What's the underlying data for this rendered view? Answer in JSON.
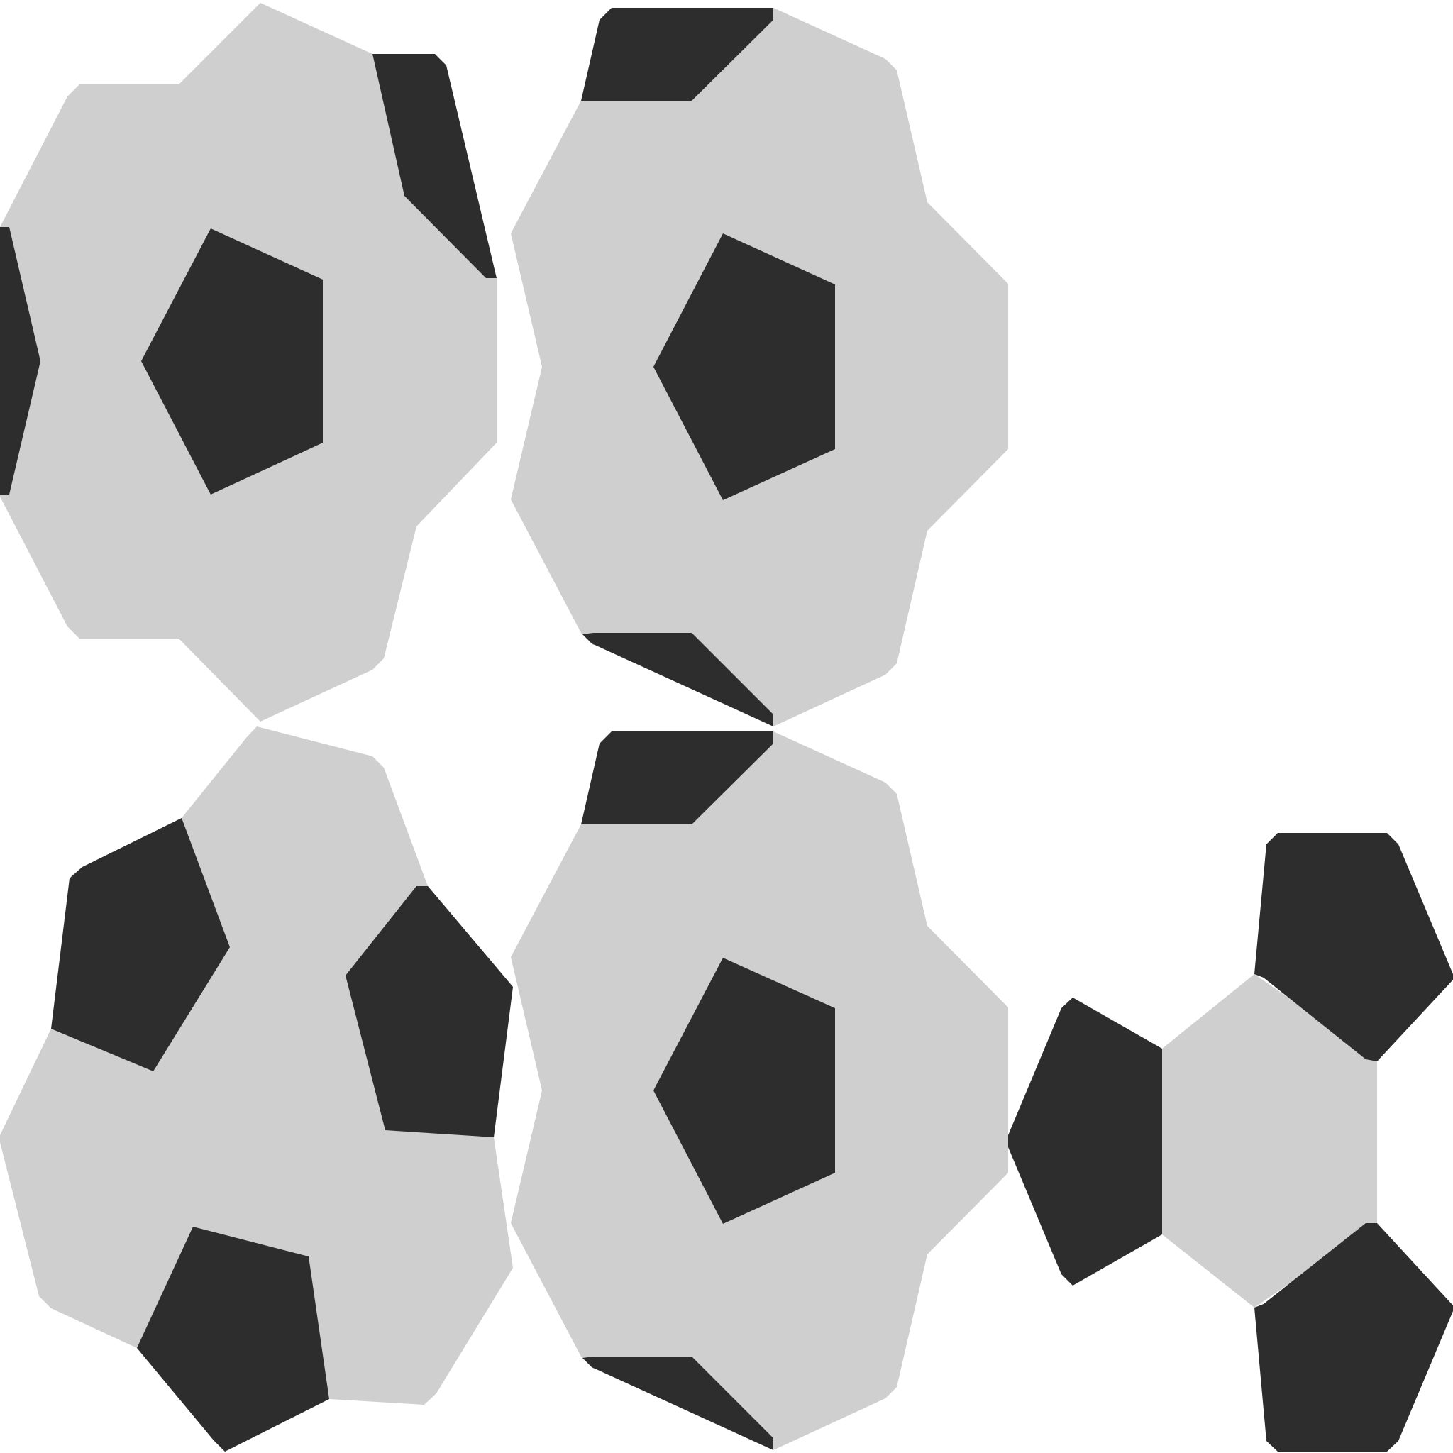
{
  "colors": {
    "background": "#ffffff",
    "light_tile": "#cfcfcf",
    "dark_tile": "#2d2d2d"
  },
  "tiles": [
    {
      "id": "tile-top-left",
      "light_patches": [
        "light-polygon-top-left"
      ],
      "dark_patches": [
        "dark-pentagon-top-left-center",
        "dark-patch-top-left-upper-right",
        "dark-patch-top-left-left-edge"
      ]
    },
    {
      "id": "tile-top-right",
      "light_patches": [
        "light-polygon-top-right"
      ],
      "dark_patches": [
        "dark-pentagon-top-right-center",
        "dark-patch-top-right-top",
        "dark-patch-top-right-bottom"
      ]
    },
    {
      "id": "tile-bottom-left",
      "light_patches": [
        "light-polygon-bottom-left"
      ],
      "dark_patches": [
        "dark-pentagon-bottom-left-upper-left",
        "dark-pentagon-bottom-left-upper-right",
        "dark-pentagon-bottom-left-bottom"
      ]
    },
    {
      "id": "tile-bottom-middle",
      "light_patches": [
        "light-polygon-bottom-middle"
      ],
      "dark_patches": [
        "dark-pentagon-bottom-middle-center",
        "dark-patch-bottom-middle-top",
        "dark-patch-bottom-middle-bottom"
      ]
    },
    {
      "id": "tile-bottom-right",
      "light_patches": [
        "light-hexagon-bottom-right"
      ],
      "dark_patches": [
        "dark-pentagon-bottom-right-left",
        "dark-pentagon-bottom-right-top",
        "dark-pentagon-bottom-right-bottom"
      ]
    }
  ]
}
